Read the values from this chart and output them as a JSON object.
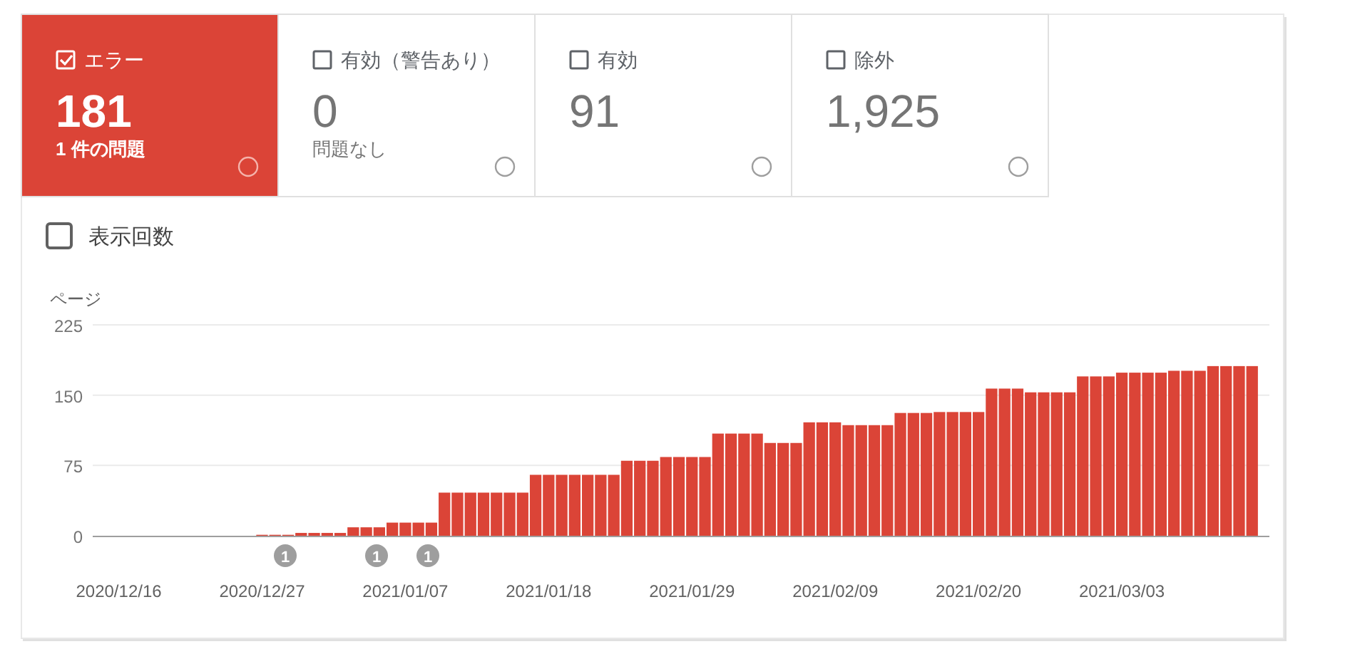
{
  "chart_data": [
    {
      "type": "other",
      "categories": [
        "エラー",
        "有効（警告あり）",
        "有効",
        "除外"
      ],
      "value_labels": [
        "181",
        "0",
        "91",
        "1,925"
      ],
      "colors": [
        "#db4437",
        "#ffffff",
        "#ffffff",
        "#ffffff"
      ],
      "annotations": [
        "1 件の問題",
        "問題なし"
      ]
    },
    {
      "type": "bar",
      "ylabel": "ページ",
      "color": "#db4437",
      "grid": "y",
      "ylim": [
        0,
        225
      ],
      "yticks": [
        0,
        75,
        150,
        225
      ],
      "xlim": [
        "2020-12-14",
        "2021-03-14"
      ],
      "xticks": [
        {
          "value": "2020-12-16",
          "label": "2020/12/16"
        },
        {
          "value": "2020-12-27",
          "label": "2020/12/27"
        },
        {
          "value": "2021-01-07",
          "label": "2021/01/07"
        },
        {
          "value": "2021-01-18",
          "label": "2021/01/18"
        },
        {
          "value": "2021-01-29",
          "label": "2021/01/29"
        },
        {
          "value": "2021-02-09",
          "label": "2021/02/09"
        },
        {
          "value": "2021-02-20",
          "label": "2021/02/20"
        },
        {
          "value": "2021-03-03",
          "label": "2021/03/03"
        }
      ],
      "x": [
        "2020-12-16",
        "2020-12-17",
        "2020-12-18",
        "2020-12-19",
        "2020-12-20",
        "2020-12-21",
        "2020-12-22",
        "2020-12-23",
        "2020-12-24",
        "2020-12-25",
        "2020-12-26",
        "2020-12-27",
        "2020-12-28",
        "2020-12-29",
        "2020-12-30",
        "2020-12-31",
        "2021-01-01",
        "2021-01-02",
        "2021-01-03",
        "2021-01-04",
        "2021-01-05",
        "2021-01-06",
        "2021-01-07",
        "2021-01-08",
        "2021-01-09",
        "2021-01-10",
        "2021-01-11",
        "2021-01-12",
        "2021-01-13",
        "2021-01-14",
        "2021-01-15",
        "2021-01-16",
        "2021-01-17",
        "2021-01-18",
        "2021-01-19",
        "2021-01-20",
        "2021-01-21",
        "2021-01-22",
        "2021-01-23",
        "2021-01-24",
        "2021-01-25",
        "2021-01-26",
        "2021-01-27",
        "2021-01-28",
        "2021-01-29",
        "2021-01-30",
        "2021-01-31",
        "2021-02-01",
        "2021-02-02",
        "2021-02-03",
        "2021-02-04",
        "2021-02-05",
        "2021-02-06",
        "2021-02-07",
        "2021-02-08",
        "2021-02-09",
        "2021-02-10",
        "2021-02-11",
        "2021-02-12",
        "2021-02-13",
        "2021-02-14",
        "2021-02-15",
        "2021-02-16",
        "2021-02-17",
        "2021-02-18",
        "2021-02-19",
        "2021-02-20",
        "2021-02-21",
        "2021-02-22",
        "2021-02-23",
        "2021-02-24",
        "2021-02-25",
        "2021-02-26",
        "2021-02-27",
        "2021-02-28",
        "2021-03-01",
        "2021-03-02",
        "2021-03-03",
        "2021-03-04",
        "2021-03-05",
        "2021-03-06",
        "2021-03-07",
        "2021-03-08",
        "2021-03-09",
        "2021-03-10",
        "2021-03-11",
        "2021-03-12",
        "2021-03-13"
      ],
      "values": [
        0,
        0,
        0,
        0,
        0,
        0,
        0,
        0,
        0,
        0,
        0,
        1,
        1,
        1,
        3,
        3,
        3,
        3,
        9,
        9,
        9,
        14,
        14,
        14,
        14,
        46,
        46,
        46,
        46,
        46,
        46,
        46,
        65,
        65,
        65,
        65,
        65,
        65,
        65,
        80,
        80,
        80,
        84,
        84,
        84,
        84,
        109,
        109,
        109,
        109,
        99,
        99,
        99,
        121,
        121,
        121,
        118,
        118,
        118,
        118,
        131,
        131,
        131,
        132,
        132,
        132,
        132,
        157,
        157,
        157,
        153,
        153,
        153,
        153,
        170,
        170,
        170,
        174,
        174,
        174,
        174,
        176,
        176,
        176,
        181,
        181,
        181,
        181
      ],
      "annotations": [
        "表示回数",
        "1",
        "1",
        "1"
      ]
    }
  ]
}
